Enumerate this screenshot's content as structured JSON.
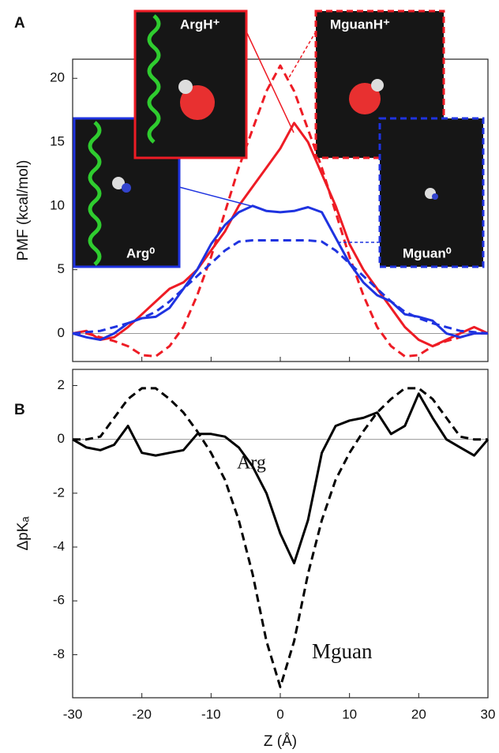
{
  "chart_data": [
    {
      "type": "line",
      "panel_label": "A",
      "ylabel": "PMF (kcal/mol)",
      "x": [
        -30,
        -28,
        -26,
        -24,
        -22,
        -20,
        -18,
        -16,
        -14,
        -12,
        -10,
        -8,
        -6,
        -4,
        -2,
        0,
        2,
        4,
        6,
        8,
        10,
        12,
        14,
        16,
        18,
        20,
        22,
        24,
        26,
        28,
        30
      ],
      "series": [
        {
          "name": "ArgH⁺",
          "color": "#ee1c25",
          "dash": false,
          "values": [
            0,
            0.2,
            -0.5,
            -0.3,
            0.5,
            1.5,
            2.5,
            3.5,
            4,
            5,
            6.5,
            8,
            10,
            11.5,
            13,
            14.5,
            16.5,
            15,
            12.5,
            10,
            7,
            5,
            3.5,
            2,
            0.5,
            -0.5,
            -1,
            -0.5,
            0,
            0.5,
            0
          ]
        },
        {
          "name": "MguanH⁺",
          "color": "#ee1c25",
          "dash": true,
          "values": [
            0,
            0,
            -0.3,
            -0.6,
            -1,
            -1.7,
            -1.8,
            -1,
            0.5,
            3,
            6,
            9.5,
            13,
            16,
            19,
            21,
            19,
            16,
            13,
            9.5,
            6,
            3,
            0.5,
            -1,
            -1.8,
            -1.7,
            -1,
            -0.6,
            -0.3,
            0,
            0
          ]
        },
        {
          "name": "Arg⁰",
          "color": "#1f33e0",
          "dash": false,
          "values": [
            0,
            -0.3,
            -0.5,
            0,
            0.8,
            1.2,
            1.3,
            2,
            3.5,
            5,
            7,
            8.5,
            9.5,
            10,
            9.6,
            9.5,
            9.6,
            9.9,
            9.5,
            7.5,
            5.5,
            4,
            3,
            2.5,
            1.5,
            1.3,
            1,
            0,
            -0.3,
            0,
            0
          ]
        },
        {
          "name": "Mguan⁰",
          "color": "#1f33e0",
          "dash": true,
          "values": [
            0,
            0.1,
            0.2,
            0.5,
            0.8,
            1.2,
            1.7,
            2.5,
            3.5,
            4.5,
            5.5,
            6.5,
            7.2,
            7.3,
            7.3,
            7.3,
            7.3,
            7.3,
            7.2,
            6.5,
            5.5,
            4.5,
            3.5,
            2.5,
            1.7,
            1.2,
            0.8,
            0.5,
            0.2,
            0.1,
            0
          ]
        }
      ],
      "xlim": [
        -30,
        30
      ],
      "xticks": [
        -30,
        -20,
        -10,
        0,
        10,
        20,
        30
      ],
      "xtick_labels": false,
      "ylim": [
        -2.2,
        21.5
      ],
      "yticks": [
        0,
        5,
        10,
        15,
        20
      ],
      "hline": 0
    },
    {
      "type": "line",
      "panel_label": "B",
      "ylabel": "ΔpKₐ",
      "xlabel": "Z (Å)",
      "x": [
        -30,
        -28,
        -26,
        -24,
        -22,
        -20,
        -18,
        -16,
        -14,
        -12,
        -10,
        -8,
        -6,
        -4,
        -2,
        0,
        2,
        4,
        6,
        8,
        10,
        12,
        14,
        16,
        18,
        20,
        22,
        24,
        26,
        28,
        30
      ],
      "series": [
        {
          "name": "Arg",
          "color": "#000000",
          "dash": false,
          "values": [
            0,
            -0.3,
            -0.4,
            -0.2,
            0.5,
            -0.5,
            -0.6,
            -0.5,
            -0.4,
            0.2,
            0.2,
            0.1,
            -0.3,
            -1,
            -2,
            -3.5,
            -4.6,
            -3,
            -0.5,
            0.5,
            0.7,
            0.8,
            1,
            0.2,
            0.5,
            1.7,
            0.8,
            0,
            -0.3,
            -0.6,
            0
          ]
        },
        {
          "name": "Mguan",
          "color": "#000000",
          "dash": true,
          "values": [
            0,
            0,
            0.1,
            0.8,
            1.5,
            1.9,
            1.9,
            1.5,
            1,
            0.3,
            -0.5,
            -1.5,
            -3,
            -5,
            -7.5,
            -9.2,
            -7.5,
            -5,
            -3,
            -1.5,
            -0.5,
            0.3,
            1,
            1.5,
            1.9,
            1.9,
            1.5,
            0.8,
            0.1,
            0,
            0
          ]
        }
      ],
      "xlim": [
        -30,
        30
      ],
      "xticks": [
        -30,
        -20,
        -10,
        0,
        10,
        20,
        30
      ],
      "xtick_labels": true,
      "ylim": [
        -9.6,
        2.6
      ],
      "yticks": [
        2,
        0,
        -2,
        -4,
        -6,
        -8
      ],
      "hline": 0
    }
  ]
}
